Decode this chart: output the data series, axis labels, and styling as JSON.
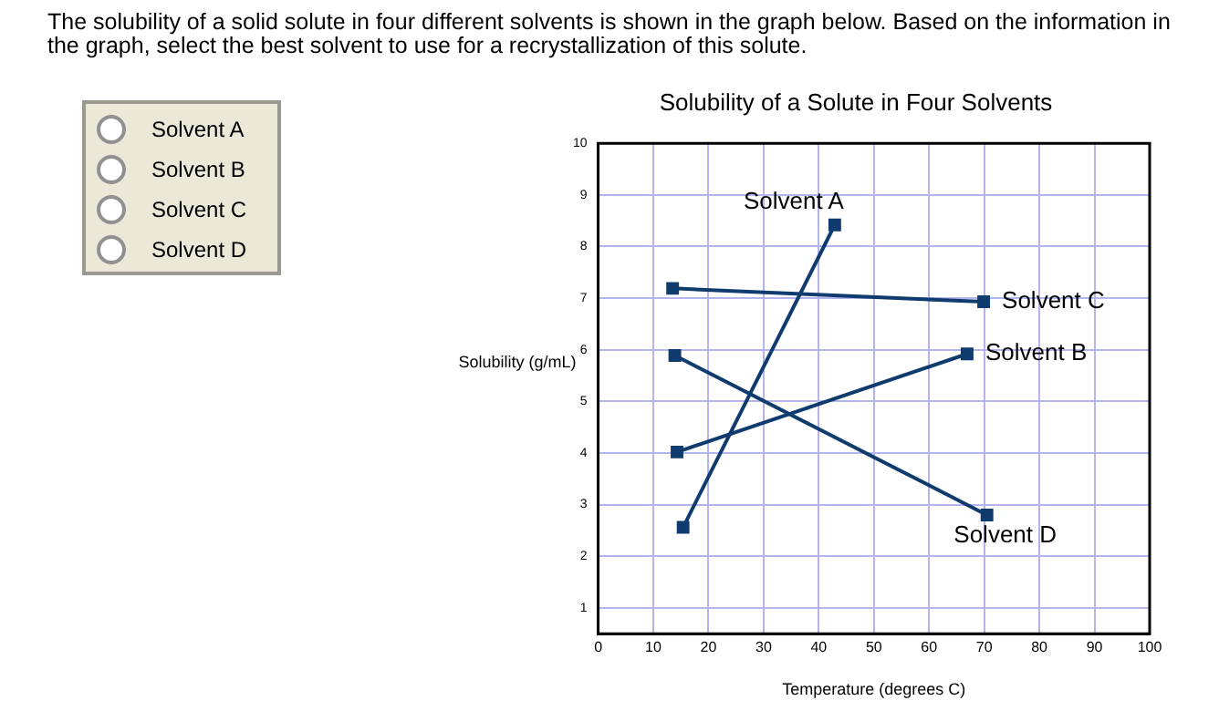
{
  "chart_data": {
    "type": "line",
    "title": "Solubility of a Solute in Four Solvents",
    "xlabel": "Temperature (degrees C)",
    "ylabel": "Solubility (g/mL)",
    "annotations": [
      "The solubility of a solid solute in four different solvents is shown in the graph below. Based on the information in the graph, select the best solvent to use for a recrystallization of this solute.",
      "Solvent A",
      "Solvent B",
      "Solvent C",
      "Solvent D"
    ],
    "series": [
      {
        "name": "Solvent A",
        "color": "#0f3b6e",
        "x": [
          15.4,
          42.9
        ],
        "values": [
          2.56,
          8.42
        ]
      },
      {
        "name": "Solvent B",
        "color": "#0f3b6e",
        "x": [
          14.3,
          66.9
        ],
        "values": [
          4.02,
          5.92
        ]
      },
      {
        "name": "Solvent C",
        "color": "#0f3b6e",
        "x": [
          13.5,
          69.9
        ],
        "values": [
          7.19,
          6.93
        ]
      },
      {
        "name": "Solvent D",
        "color": "#0f3b6e",
        "x": [
          13.9,
          70.5
        ],
        "values": [
          5.89,
          2.8
        ]
      }
    ],
    "xlim": [
      0,
      100
    ],
    "xticks": [
      0,
      10,
      20,
      30,
      40,
      50,
      60,
      70,
      80,
      90,
      100
    ],
    "ylim": [
      0.5,
      10
    ],
    "yticks": [
      1,
      2,
      3,
      4,
      5,
      6,
      7,
      8,
      9,
      10
    ],
    "grid": true,
    "legend": false,
    "marker": "square",
    "line_style": "solid"
  }
}
